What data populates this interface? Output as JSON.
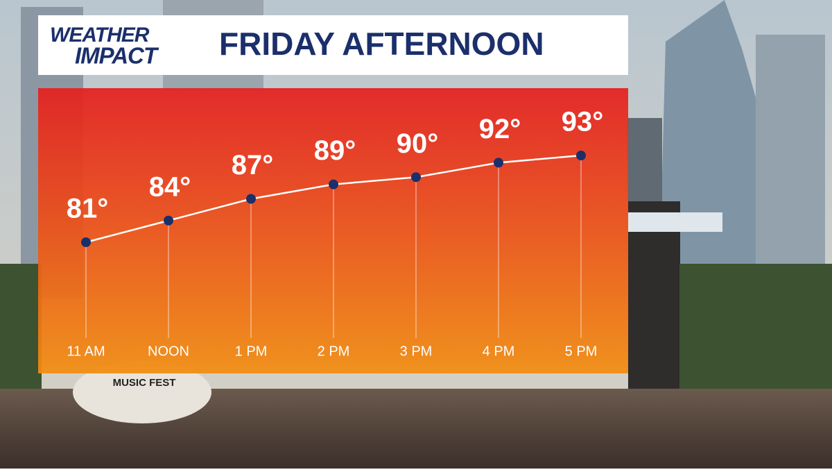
{
  "logo": {
    "line1": "WEATHER",
    "line2": "IMPACT"
  },
  "background": {
    "sign": "MUSIC FEST"
  },
  "chart_data": {
    "type": "line",
    "title": "FRIDAY AFTERNOON",
    "categories": [
      "11 AM",
      "NOON",
      "1 PM",
      "2 PM",
      "3 PM",
      "4 PM",
      "5 PM"
    ],
    "values": [
      81,
      84,
      87,
      89,
      90,
      92,
      93
    ],
    "value_labels": [
      "81°",
      "84°",
      "87°",
      "89°",
      "90°",
      "92°",
      "93°"
    ],
    "color": "#ffffff",
    "marker_color": "#1b2f6b"
  }
}
